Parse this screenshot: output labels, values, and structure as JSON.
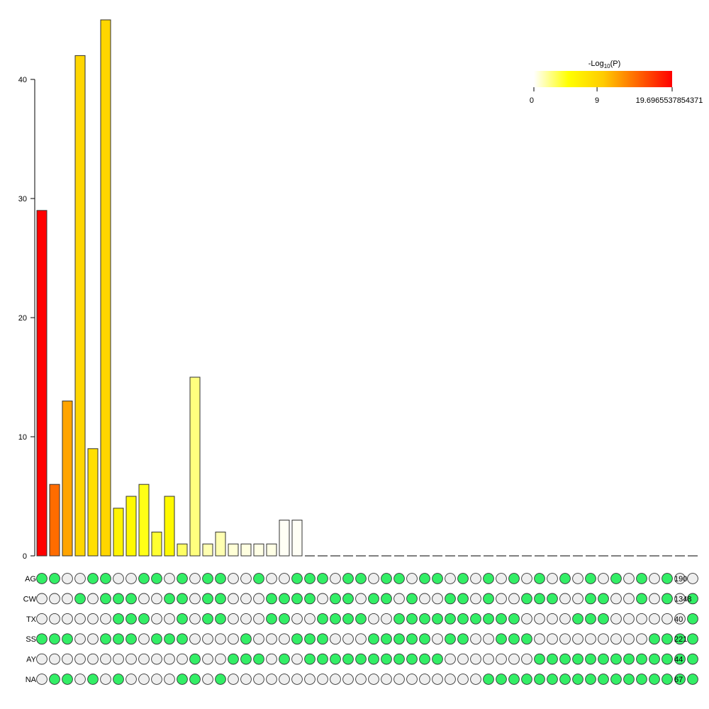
{
  "chart_data": {
    "type": "bar",
    "title": "",
    "xlabel": "",
    "ylabel": "",
    "ylim": [
      0,
      45
    ],
    "yticks": [
      0,
      10,
      20,
      30,
      40
    ],
    "values": [
      29,
      6,
      13,
      42,
      9,
      45,
      4,
      5,
      6,
      2,
      5,
      1,
      15,
      1,
      2,
      1,
      1,
      1,
      1,
      3,
      3,
      0,
      0,
      0,
      0,
      0,
      0,
      0,
      0,
      0,
      0,
      0,
      0,
      0,
      0,
      0,
      0,
      0,
      0,
      0,
      0,
      0,
      0,
      0,
      0,
      0,
      0,
      0,
      0,
      0,
      0,
      0
    ],
    "neglog10p": [
      19.7,
      14.5,
      11.8,
      8.9,
      8.0,
      8.9,
      6.0,
      5.5,
      4.5,
      4.0,
      5.5,
      3.0,
      2.5,
      1.5,
      1.5,
      0.8,
      0.6,
      0.5,
      0.5,
      0.2,
      0.2,
      0,
      0,
      0,
      0,
      0,
      0,
      0,
      0,
      0,
      0,
      0,
      0,
      0,
      0,
      0,
      0,
      0,
      0,
      0,
      0,
      0,
      0,
      0,
      0,
      0,
      0,
      0,
      0,
      0,
      0,
      0
    ],
    "sets": [
      {
        "name": "AG",
        "size": "190",
        "members": "1100110011010110010011101101101101010101010101010100"
      },
      {
        "name": "CW",
        "size": "1348",
        "members": "0001011100110110001111011011010011010011100110010101"
      },
      {
        "name": "TX",
        "size": "40",
        "members": "0000001110010110001100111100111111111100001110000001"
      },
      {
        "name": "SS",
        "size": "221",
        "members": "1110011101110000100011100011111011001110000000001111"
      },
      {
        "name": "AY",
        "size": "44",
        "members": "0000000000001001110101111111111100000001111111111111"
      },
      {
        "name": "NA",
        "size": "67",
        "members": "0110101000011010000000000000000000011111111111111111"
      }
    ],
    "legend": {
      "title": "-Log10(P)",
      "ticks": [
        "0",
        "9",
        "19.6965537854371"
      ],
      "tick_values": [
        0,
        9,
        19.6965537854371
      ],
      "max": 19.6965537854371,
      "placement": "top-right",
      "colors": [
        "#ffffff",
        "#ffff00",
        "#ffcc00",
        "#ff6600",
        "#ff0000"
      ]
    },
    "dot_colors": {
      "on": "#33ee66",
      "off": "#eeeeee",
      "stroke": "#333333"
    },
    "grid": false
  }
}
